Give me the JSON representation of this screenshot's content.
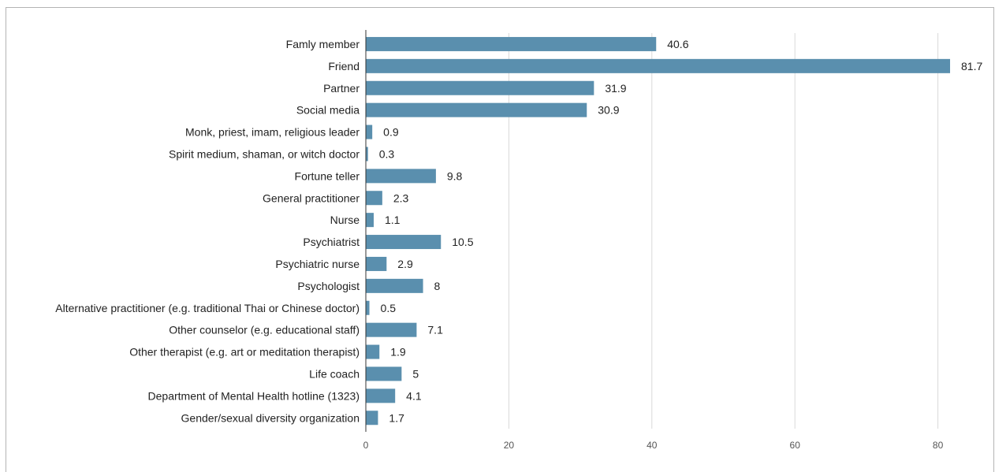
{
  "chart_data": {
    "type": "bar",
    "orientation": "horizontal",
    "categories": [
      "Famly member",
      "Friend",
      "Partner",
      "Social media",
      "Monk, priest, imam, religious leader",
      "Spirit medium, shaman, or witch doctor",
      "Fortune teller",
      "General practitioner",
      "Nurse",
      "Psychiatrist",
      "Psychiatric nurse",
      "Psychologist",
      "Alternative practitioner (e.g. traditional Thai or Chinese doctor)",
      "Other counselor (e.g. educational staff)",
      "Other therapist (e.g. art or meditation therapist)",
      "Life coach",
      "Department of Mental Health hotline (1323)",
      "Gender/sexual diversity organization"
    ],
    "values": [
      40.6,
      81.7,
      31.9,
      30.9,
      0.9,
      0.3,
      9.8,
      2.3,
      1.1,
      10.5,
      2.9,
      8,
      0.5,
      7.1,
      1.9,
      5,
      4.1,
      1.7
    ],
    "value_labels": [
      "40.6",
      "81.7",
      "31.9",
      "30.9",
      "0.9",
      "0.3",
      "9.8",
      "2.3",
      "1.1",
      "10.5",
      "2.9",
      "8",
      "0.5",
      "7.1",
      "1.9",
      "5",
      "4.1",
      "1.7"
    ],
    "x_ticks": [
      0,
      20,
      40,
      60,
      80
    ],
    "xlim": [
      0,
      87
    ],
    "bar_color": "#5a8fae",
    "grid": true,
    "title": "",
    "xlabel": "",
    "ylabel": ""
  }
}
